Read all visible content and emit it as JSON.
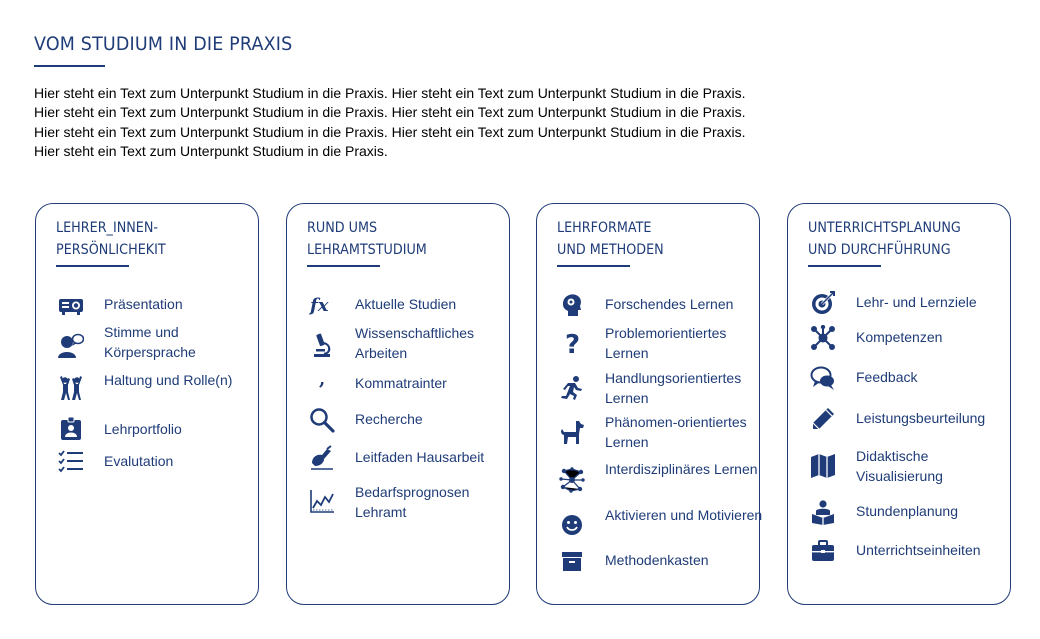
{
  "page": {
    "title": "VOM STUDIUM IN DIE PRAXIS",
    "intro_lines": [
      "Hier steht ein Text zum Unterpunkt Studium in die Praxis. Hier steht ein Text zum Unterpunkt Studium in die Praxis.",
      "Hier steht ein Text zum Unterpunkt Studium in die Praxis. Hier steht ein Text zum Unterpunkt Studium in die Praxis.",
      "Hier steht ein Text zum Unterpunkt Studium in die Praxis. Hier steht ein Text zum Unterpunkt Studium in die Praxis.",
      "Hier steht ein Text zum Unterpunkt Studium in die Praxis."
    ]
  },
  "colors": {
    "accent": "#1f3c78",
    "text": "#000000",
    "background": "#ffffff"
  },
  "cards": [
    {
      "heading_line1": "LEHRER_INNEN-",
      "heading_line2": "PERSÖNLICHEKIT",
      "items": [
        {
          "label": "Präsentation",
          "icon": "projector-icon"
        },
        {
          "label": "Stimme und Körpersprache",
          "icon": "speaking-person-icon"
        },
        {
          "label": "Haltung und Rolle(n)",
          "icon": "people-cheering-icon"
        },
        {
          "label": "Lehrportfolio",
          "icon": "id-badge-icon"
        },
        {
          "label": "Evalutation",
          "icon": "checklist-icon"
        }
      ]
    },
    {
      "heading_line1": "RUND UMS",
      "heading_line2": "LEHRAMTSTUDIUM",
      "items": [
        {
          "label": "Aktuelle Studien",
          "icon": "function-fx-icon"
        },
        {
          "label": "Wissenschaftliches Arbeiten",
          "icon": "microscope-icon"
        },
        {
          "label": "Kommatrainter",
          "icon": "comma-icon"
        },
        {
          "label": "Recherche",
          "icon": "magnifier-icon"
        },
        {
          "label": "Leitfaden Hausarbeit",
          "icon": "hand-writing-icon"
        },
        {
          "label": "Bedarfsprognosen Lehramt",
          "icon": "line-chart-icon"
        }
      ]
    },
    {
      "heading_line1": "LEHRFORMATE",
      "heading_line2": "UND METHODEN",
      "items": [
        {
          "label": "Forschendes Lernen",
          "icon": "head-gears-icon"
        },
        {
          "label": "Problemorientiertes Lernen",
          "icon": "question-mark-icon"
        },
        {
          "label": "Handlungsorientiertes Lernen",
          "icon": "running-person-icon"
        },
        {
          "label": "Phänomen-orientiertes Lernen",
          "icon": "dog-icon"
        },
        {
          "label": "Interdisziplinäres Lernen",
          "icon": "network-nodes-icon"
        },
        {
          "label": "Aktivieren und Motivieren",
          "icon": "smiley-icon"
        },
        {
          "label": "Methodenkasten",
          "icon": "archive-box-icon"
        }
      ]
    },
    {
      "heading_line1": "UNTERRICHTSPLANUNG",
      "heading_line2": "UND DURCHFÜHRUNG",
      "items": [
        {
          "label": "Lehr- und Lernziele",
          "icon": "target-icon"
        },
        {
          "label": "Kompetenzen",
          "icon": "hub-network-icon"
        },
        {
          "label": "Feedback",
          "icon": "speech-bubbles-icon"
        },
        {
          "label": "Leistungsbeurteilung",
          "icon": "pencil-icon"
        },
        {
          "label": "Didaktische Visualisierung",
          "icon": "folded-map-icon"
        },
        {
          "label": "Stundenplanung",
          "icon": "reading-person-icon"
        },
        {
          "label": "Unterrichtseinheiten",
          "icon": "briefcase-icon"
        }
      ]
    }
  ]
}
